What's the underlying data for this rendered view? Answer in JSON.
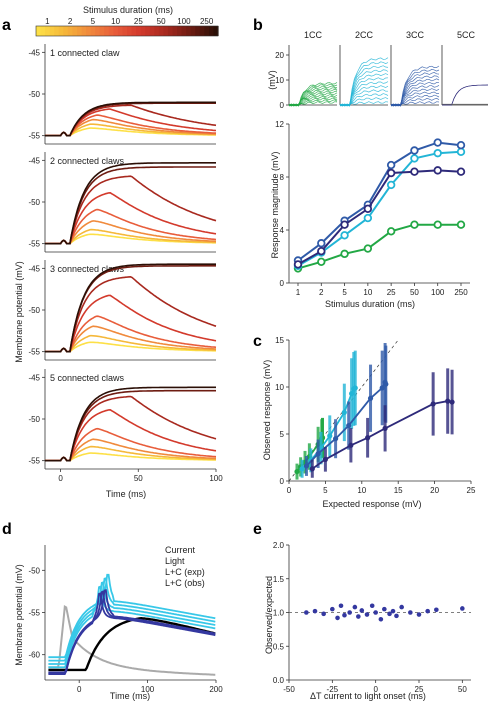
{
  "panel_labels": {
    "a": "a",
    "b": "b",
    "c": "c",
    "d": "d",
    "e": "e"
  },
  "colorbar": {
    "title": "Stimulus duration (ms)",
    "labels": [
      "1",
      "2",
      "5",
      "10",
      "25",
      "50",
      "100",
      "250"
    ],
    "colors": [
      "#fde047",
      "#f5b83a",
      "#f08a3c",
      "#e85d3b",
      "#d33a2c",
      "#a8291f",
      "#6e1c12",
      "#2b0f06"
    ]
  },
  "colors": {
    "cc1": "#22a845",
    "cc2": "#22b5d6",
    "cc3": "#2f5aa8",
    "cc5": "#2e2a7a",
    "current": "#aaaaaa",
    "light": "#000000",
    "lc_exp": "#38c8e8",
    "lc_obs": "#3438a0"
  },
  "chart_data": [
    {
      "id": "a",
      "type": "line",
      "xlabel": "Time (ms)",
      "ylabel": "Membrane potential (mV)",
      "xlim": [
        -10,
        100
      ],
      "ylim": [
        -56,
        -42
      ],
      "xticks": [
        "0",
        "50",
        "100"
      ],
      "yticks": [
        "-55",
        "-50",
        "-45"
      ],
      "series_names": [
        "1",
        "2",
        "5",
        "10",
        "25",
        "50",
        "100",
        "250"
      ],
      "subpanels": [
        {
          "title": "1 connected claw",
          "base": -55,
          "peak_250": -51,
          "peaks": [
            -53.8,
            -53.2,
            -52.6,
            -52.1,
            -51.6,
            -51.3,
            -51.1,
            -51.0
          ]
        },
        {
          "title": "2 connected claws",
          "base": -55,
          "peak_250": -45.3,
          "peaks": [
            -53.5,
            -52.8,
            -51.6,
            -50.2,
            -48.5,
            -46.8,
            -45.8,
            -45.3
          ]
        },
        {
          "title": "3 connected claws",
          "base": -55,
          "peak_250": -44.5,
          "peaks": [
            -53.5,
            -52.5,
            -51.2,
            -50.0,
            -47.8,
            -45.9,
            -44.7,
            -44.5
          ]
        },
        {
          "title": "5 connected claws",
          "base": -55,
          "peak_250": -46.2,
          "peaks": [
            -53.8,
            -52.8,
            -51.8,
            -50.5,
            -48.5,
            -47.2,
            -46.6,
            -46.2
          ]
        }
      ]
    },
    {
      "id": "b_inset",
      "type": "line",
      "ylabel": "(mV)",
      "yticks": [
        "0",
        "10",
        "20"
      ],
      "series": [
        {
          "name": "1CC"
        },
        {
          "name": "2CC"
        },
        {
          "name": "3CC"
        },
        {
          "name": "5CC"
        }
      ]
    },
    {
      "id": "b",
      "type": "line",
      "xlabel": "Stimulus duration (ms)",
      "ylabel": "Response magnitude (mV)",
      "categories": [
        "1",
        "2",
        "5",
        "10",
        "25",
        "50",
        "100",
        "250"
      ],
      "ylim": [
        0,
        12
      ],
      "yticks": [
        "0",
        "4",
        "8",
        "12"
      ],
      "series": [
        {
          "name": "1CC",
          "values": [
            1.1,
            1.6,
            2.2,
            2.6,
            3.9,
            4.4,
            4.4,
            4.4
          ]
        },
        {
          "name": "2CC",
          "values": [
            1.3,
            2.3,
            3.6,
            4.9,
            7.4,
            9.4,
            9.8,
            9.9
          ]
        },
        {
          "name": "3CC",
          "values": [
            1.7,
            3.0,
            4.7,
            5.9,
            8.9,
            10.0,
            10.6,
            10.4
          ]
        },
        {
          "name": "5CC",
          "values": [
            1.4,
            2.4,
            4.4,
            5.6,
            8.3,
            8.4,
            8.5,
            8.4
          ]
        }
      ]
    },
    {
      "id": "c",
      "type": "scatter",
      "xlabel": "Expected response (mV)",
      "ylabel": "Observed response (mV)",
      "xlim": [
        0,
        25
      ],
      "ylim": [
        0,
        15
      ],
      "xticks": [
        "0",
        "5",
        "10",
        "15",
        "20",
        "25"
      ],
      "yticks": [
        "0",
        "5",
        "10",
        "15"
      ],
      "series": [
        {
          "name": "1CC",
          "x": [
            1.1,
            1.6,
            2.2,
            2.8,
            4.0,
            4.5,
            4.6,
            4.6
          ],
          "y": [
            1.0,
            1.5,
            2.0,
            2.6,
            3.9,
            4.5,
            4.6,
            4.6
          ]
        },
        {
          "name": "2CC",
          "x": [
            1.8,
            3.0,
            4.4,
            5.6,
            7.6,
            8.6,
            8.9,
            9.1
          ],
          "y": [
            1.3,
            2.2,
            3.5,
            4.8,
            7.3,
            9.3,
            9.8,
            9.9
          ]
        },
        {
          "name": "3CC",
          "x": [
            2.4,
            4.0,
            6.4,
            8.2,
            11.2,
            12.8,
            13.2,
            13.3
          ],
          "y": [
            1.6,
            2.9,
            4.5,
            5.9,
            8.8,
            9.9,
            10.5,
            10.3
          ]
        },
        {
          "name": "5CC",
          "x": [
            3.2,
            5.0,
            8.5,
            10.8,
            13.2,
            19.8,
            21.8,
            22.4
          ],
          "y": [
            1.3,
            2.3,
            3.8,
            4.6,
            5.6,
            8.2,
            8.5,
            8.4
          ]
        }
      ]
    },
    {
      "id": "d",
      "type": "line",
      "xlabel": "Time (ms)",
      "ylabel": "Membrane potential (mV)",
      "xlim": [
        -50,
        200
      ],
      "ylim": [
        -63,
        -47
      ],
      "xticks": [
        "0",
        "100",
        "200"
      ],
      "yticks": [
        "-60",
        "-55",
        "-50"
      ],
      "legend": [
        "Current",
        "Light",
        "L+C (exp)",
        "L+C (obs)"
      ]
    },
    {
      "id": "e",
      "type": "scatter",
      "xlabel": "ΔT current to light onset (ms)",
      "ylabel": "Observed/expected",
      "xlim": [
        -50,
        55
      ],
      "ylim": [
        0,
        2
      ],
      "xticks": [
        "-50",
        "-25",
        "0",
        "25",
        "50"
      ],
      "yticks": [
        "0.0",
        "0.5",
        "1.0",
        "1.5",
        "2.0"
      ],
      "x": [
        -40,
        -35,
        -30,
        -25,
        -22,
        -20,
        -18,
        -15,
        -12,
        -10,
        -8,
        -5,
        -2,
        0,
        3,
        5,
        8,
        10,
        12,
        15,
        20,
        25,
        30,
        35,
        50
      ],
      "y": [
        1.0,
        1.02,
        0.98,
        1.05,
        0.92,
        1.1,
        0.96,
        1.0,
        1.08,
        0.94,
        1.03,
        0.97,
        1.1,
        1.0,
        0.9,
        1.05,
        0.98,
        1.02,
        0.95,
        1.08,
        1.0,
        0.97,
        1.02,
        1.04,
        1.06
      ]
    }
  ]
}
